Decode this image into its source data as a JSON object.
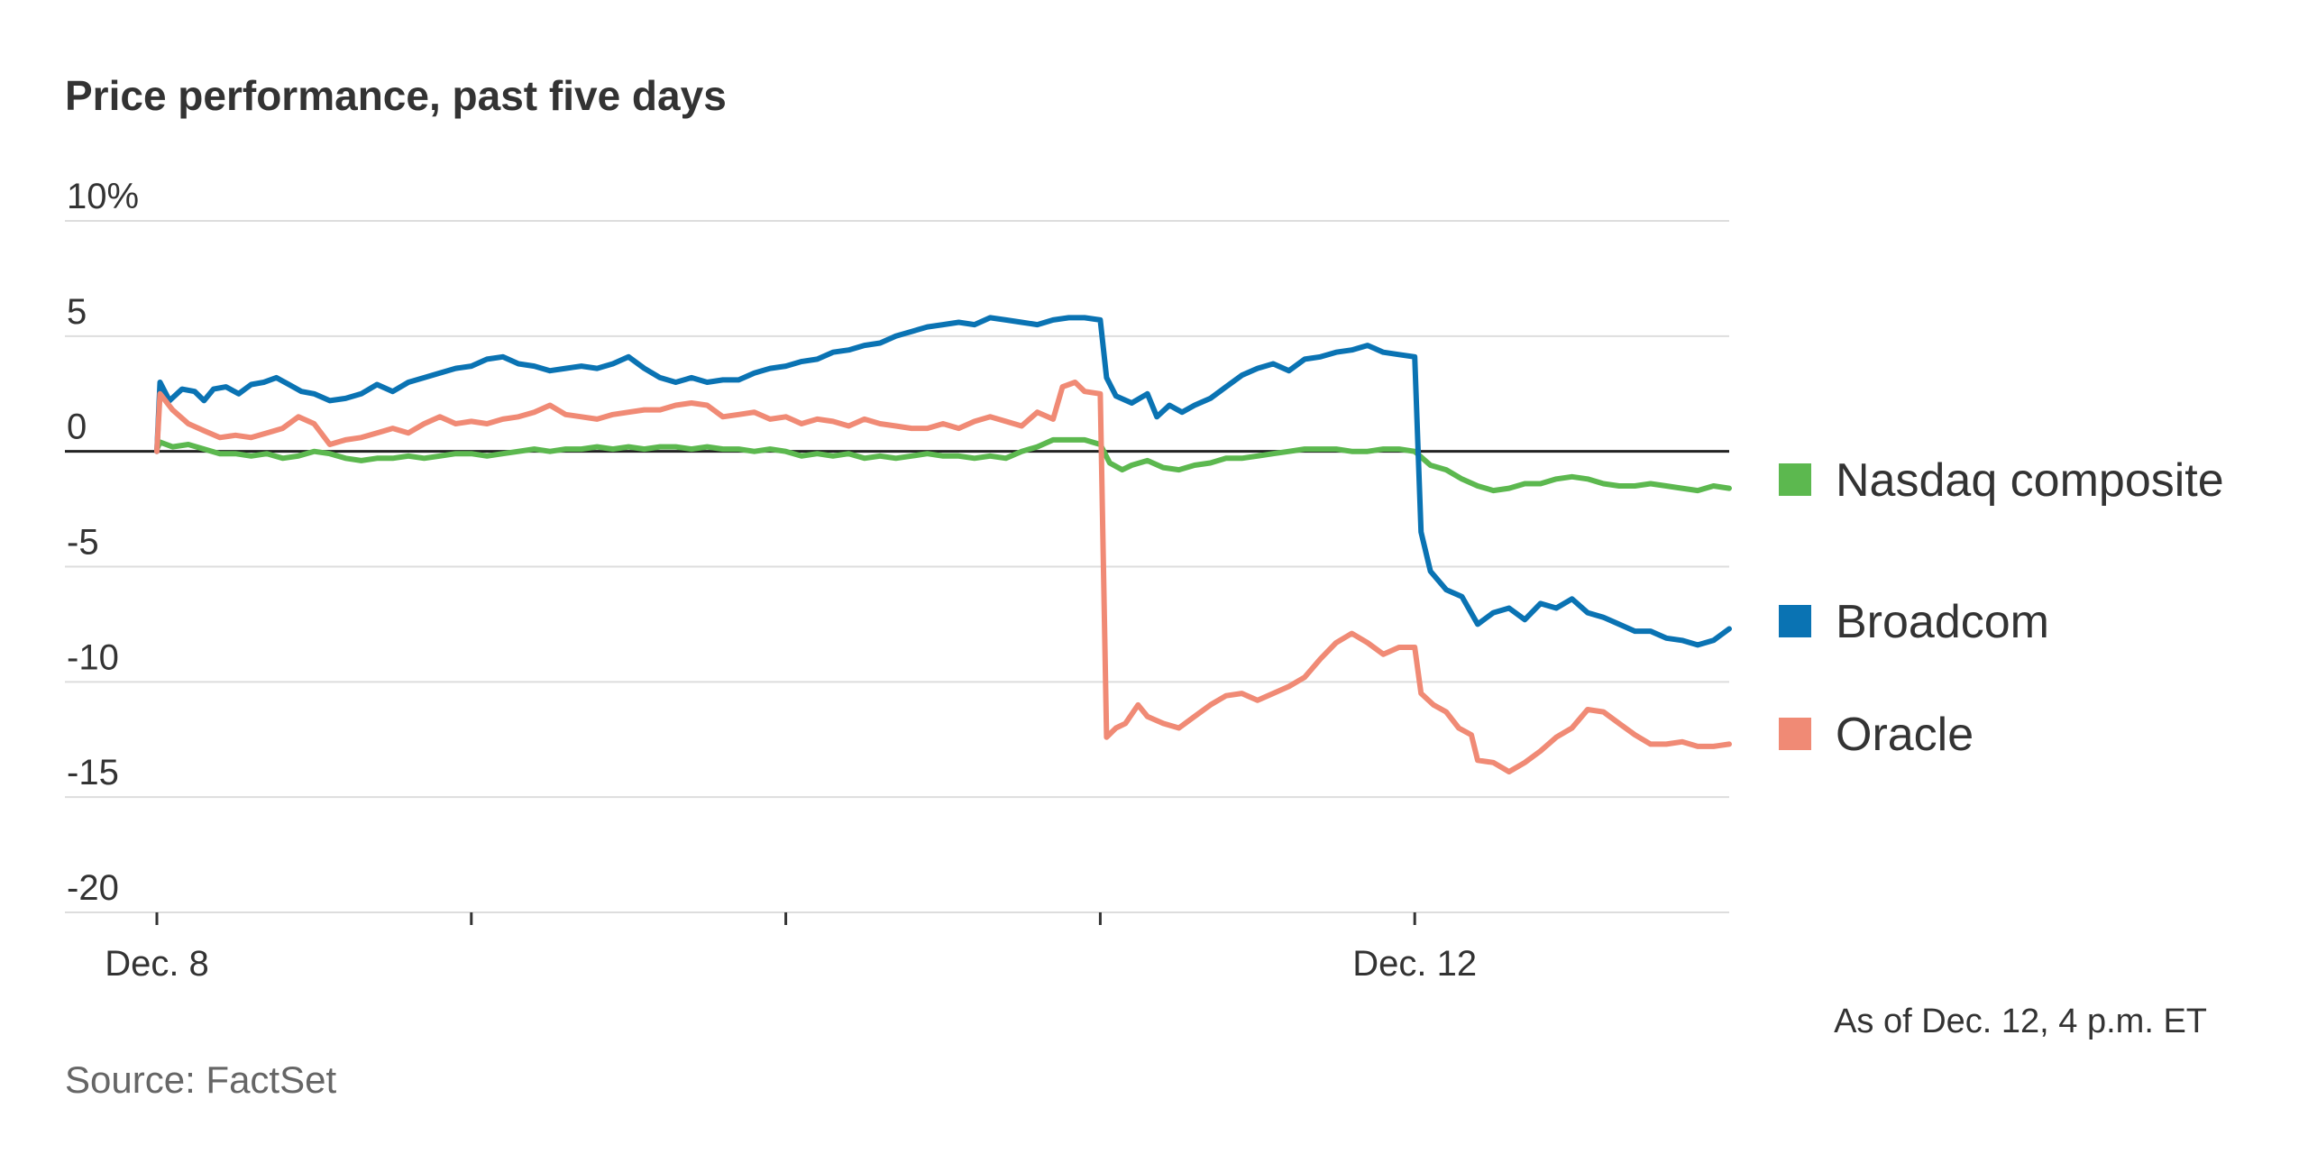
{
  "chart_data": {
    "type": "line",
    "title": "Price performance, past five days",
    "ylabel": "",
    "xlabel": "",
    "ylim": [
      -20,
      10
    ],
    "y_ticks": [
      10,
      5,
      0,
      -5,
      -10,
      -15,
      -20
    ],
    "y_tick_labels": [
      "10%",
      "5",
      "0",
      "-5",
      "-10",
      "-15",
      "-20"
    ],
    "x_range": [
      0,
      5
    ],
    "x_tick_positions": [
      0,
      1,
      2,
      3,
      4
    ],
    "x_tick_labels": [
      {
        "x": 0,
        "label": "Dec. 8"
      },
      {
        "x": 4,
        "label": "Dec. 12"
      }
    ],
    "grid": true,
    "legend_position": "right",
    "note": "As of Dec. 12, 4 p.m. ET",
    "source": "Source: FactSet",
    "series": [
      {
        "name": "Nasdaq composite",
        "color": "#5cb84f",
        "points": [
          [
            0,
            0.1
          ],
          [
            0.01,
            0.4
          ],
          [
            0.05,
            0.2
          ],
          [
            0.1,
            0.3
          ],
          [
            0.15,
            0.1
          ],
          [
            0.2,
            -0.1
          ],
          [
            0.25,
            -0.1
          ],
          [
            0.3,
            -0.2
          ],
          [
            0.35,
            -0.1
          ],
          [
            0.4,
            -0.3
          ],
          [
            0.45,
            -0.2
          ],
          [
            0.5,
            0.0
          ],
          [
            0.55,
            -0.1
          ],
          [
            0.6,
            -0.3
          ],
          [
            0.65,
            -0.4
          ],
          [
            0.7,
            -0.3
          ],
          [
            0.75,
            -0.3
          ],
          [
            0.8,
            -0.2
          ],
          [
            0.85,
            -0.3
          ],
          [
            0.9,
            -0.2
          ],
          [
            0.95,
            -0.1
          ],
          [
            1.0,
            -0.1
          ],
          [
            1.05,
            -0.2
          ],
          [
            1.1,
            -0.1
          ],
          [
            1.15,
            0.0
          ],
          [
            1.2,
            0.1
          ],
          [
            1.25,
            0.0
          ],
          [
            1.3,
            0.1
          ],
          [
            1.35,
            0.1
          ],
          [
            1.4,
            0.2
          ],
          [
            1.45,
            0.1
          ],
          [
            1.5,
            0.2
          ],
          [
            1.55,
            0.1
          ],
          [
            1.6,
            0.2
          ],
          [
            1.65,
            0.2
          ],
          [
            1.7,
            0.1
          ],
          [
            1.75,
            0.2
          ],
          [
            1.8,
            0.1
          ],
          [
            1.85,
            0.1
          ],
          [
            1.9,
            0.0
          ],
          [
            1.95,
            0.1
          ],
          [
            2.0,
            0.0
          ],
          [
            2.05,
            -0.2
          ],
          [
            2.1,
            -0.1
          ],
          [
            2.15,
            -0.2
          ],
          [
            2.2,
            -0.1
          ],
          [
            2.25,
            -0.3
          ],
          [
            2.3,
            -0.2
          ],
          [
            2.35,
            -0.3
          ],
          [
            2.4,
            -0.2
          ],
          [
            2.45,
            -0.1
          ],
          [
            2.5,
            -0.2
          ],
          [
            2.55,
            -0.2
          ],
          [
            2.6,
            -0.3
          ],
          [
            2.65,
            -0.2
          ],
          [
            2.7,
            -0.3
          ],
          [
            2.75,
            0.0
          ],
          [
            2.8,
            0.2
          ],
          [
            2.85,
            0.5
          ],
          [
            2.9,
            0.5
          ],
          [
            2.95,
            0.5
          ],
          [
            3.0,
            0.3
          ],
          [
            3.03,
            -0.5
          ],
          [
            3.07,
            -0.8
          ],
          [
            3.1,
            -0.6
          ],
          [
            3.15,
            -0.4
          ],
          [
            3.2,
            -0.7
          ],
          [
            3.25,
            -0.8
          ],
          [
            3.3,
            -0.6
          ],
          [
            3.35,
            -0.5
          ],
          [
            3.4,
            -0.3
          ],
          [
            3.45,
            -0.3
          ],
          [
            3.5,
            -0.2
          ],
          [
            3.55,
            -0.1
          ],
          [
            3.6,
            0.0
          ],
          [
            3.65,
            0.1
          ],
          [
            3.7,
            0.1
          ],
          [
            3.75,
            0.1
          ],
          [
            3.8,
            0.0
          ],
          [
            3.85,
            0.0
          ],
          [
            3.9,
            0.1
          ],
          [
            3.95,
            0.1
          ],
          [
            4.0,
            0.0
          ],
          [
            4.05,
            -0.6
          ],
          [
            4.1,
            -0.8
          ],
          [
            4.15,
            -1.2
          ],
          [
            4.2,
            -1.5
          ],
          [
            4.25,
            -1.7
          ],
          [
            4.3,
            -1.6
          ],
          [
            4.35,
            -1.4
          ],
          [
            4.4,
            -1.4
          ],
          [
            4.45,
            -1.2
          ],
          [
            4.5,
            -1.1
          ],
          [
            4.55,
            -1.2
          ],
          [
            4.6,
            -1.4
          ],
          [
            4.65,
            -1.5
          ],
          [
            4.7,
            -1.5
          ],
          [
            4.75,
            -1.4
          ],
          [
            4.8,
            -1.5
          ],
          [
            4.85,
            -1.6
          ],
          [
            4.9,
            -1.7
          ],
          [
            4.95,
            -1.5
          ],
          [
            5.0,
            -1.6
          ]
        ]
      },
      {
        "name": "Broadcom",
        "color": "#0a73b3",
        "points": [
          [
            0,
            0.0
          ],
          [
            0.01,
            3.0
          ],
          [
            0.04,
            2.2
          ],
          [
            0.08,
            2.7
          ],
          [
            0.12,
            2.6
          ],
          [
            0.15,
            2.2
          ],
          [
            0.18,
            2.7
          ],
          [
            0.22,
            2.8
          ],
          [
            0.26,
            2.5
          ],
          [
            0.3,
            2.9
          ],
          [
            0.34,
            3.0
          ],
          [
            0.38,
            3.2
          ],
          [
            0.42,
            2.9
          ],
          [
            0.46,
            2.6
          ],
          [
            0.5,
            2.5
          ],
          [
            0.55,
            2.2
          ],
          [
            0.6,
            2.3
          ],
          [
            0.65,
            2.5
          ],
          [
            0.7,
            2.9
          ],
          [
            0.75,
            2.6
          ],
          [
            0.8,
            3.0
          ],
          [
            0.85,
            3.2
          ],
          [
            0.9,
            3.4
          ],
          [
            0.95,
            3.6
          ],
          [
            1.0,
            3.7
          ],
          [
            1.05,
            4.0
          ],
          [
            1.1,
            4.1
          ],
          [
            1.15,
            3.8
          ],
          [
            1.2,
            3.7
          ],
          [
            1.25,
            3.5
          ],
          [
            1.3,
            3.6
          ],
          [
            1.35,
            3.7
          ],
          [
            1.4,
            3.6
          ],
          [
            1.45,
            3.8
          ],
          [
            1.5,
            4.1
          ],
          [
            1.55,
            3.6
          ],
          [
            1.6,
            3.2
          ],
          [
            1.65,
            3.0
          ],
          [
            1.7,
            3.2
          ],
          [
            1.75,
            3.0
          ],
          [
            1.8,
            3.1
          ],
          [
            1.85,
            3.1
          ],
          [
            1.9,
            3.4
          ],
          [
            1.95,
            3.6
          ],
          [
            2.0,
            3.7
          ],
          [
            2.05,
            3.9
          ],
          [
            2.1,
            4.0
          ],
          [
            2.15,
            4.3
          ],
          [
            2.2,
            4.4
          ],
          [
            2.25,
            4.6
          ],
          [
            2.3,
            4.7
          ],
          [
            2.35,
            5.0
          ],
          [
            2.4,
            5.2
          ],
          [
            2.45,
            5.4
          ],
          [
            2.5,
            5.5
          ],
          [
            2.55,
            5.6
          ],
          [
            2.6,
            5.5
          ],
          [
            2.65,
            5.8
          ],
          [
            2.7,
            5.7
          ],
          [
            2.75,
            5.6
          ],
          [
            2.8,
            5.5
          ],
          [
            2.85,
            5.7
          ],
          [
            2.9,
            5.8
          ],
          [
            2.95,
            5.8
          ],
          [
            3.0,
            5.7
          ],
          [
            3.02,
            3.2
          ],
          [
            3.05,
            2.4
          ],
          [
            3.1,
            2.1
          ],
          [
            3.15,
            2.5
          ],
          [
            3.18,
            1.5
          ],
          [
            3.22,
            2.0
          ],
          [
            3.26,
            1.7
          ],
          [
            3.3,
            2.0
          ],
          [
            3.35,
            2.3
          ],
          [
            3.4,
            2.8
          ],
          [
            3.45,
            3.3
          ],
          [
            3.5,
            3.6
          ],
          [
            3.55,
            3.8
          ],
          [
            3.6,
            3.5
          ],
          [
            3.65,
            4.0
          ],
          [
            3.7,
            4.1
          ],
          [
            3.75,
            4.3
          ],
          [
            3.8,
            4.4
          ],
          [
            3.85,
            4.6
          ],
          [
            3.9,
            4.3
          ],
          [
            3.95,
            4.2
          ],
          [
            4.0,
            4.1
          ],
          [
            4.02,
            -3.5
          ],
          [
            4.05,
            -5.2
          ],
          [
            4.1,
            -6.0
          ],
          [
            4.15,
            -6.3
          ],
          [
            4.2,
            -7.5
          ],
          [
            4.25,
            -7.0
          ],
          [
            4.3,
            -6.8
          ],
          [
            4.35,
            -7.3
          ],
          [
            4.4,
            -6.6
          ],
          [
            4.45,
            -6.8
          ],
          [
            4.5,
            -6.4
          ],
          [
            4.55,
            -7.0
          ],
          [
            4.6,
            -7.2
          ],
          [
            4.65,
            -7.5
          ],
          [
            4.7,
            -7.8
          ],
          [
            4.75,
            -7.8
          ],
          [
            4.8,
            -8.1
          ],
          [
            4.85,
            -8.2
          ],
          [
            4.9,
            -8.4
          ],
          [
            4.95,
            -8.2
          ],
          [
            5.0,
            -7.7
          ]
        ]
      },
      {
        "name": "Oracle",
        "color": "#f08a75",
        "points": [
          [
            0,
            0.0
          ],
          [
            0.01,
            2.5
          ],
          [
            0.05,
            1.8
          ],
          [
            0.1,
            1.2
          ],
          [
            0.15,
            0.9
          ],
          [
            0.2,
            0.6
          ],
          [
            0.25,
            0.7
          ],
          [
            0.3,
            0.6
          ],
          [
            0.35,
            0.8
          ],
          [
            0.4,
            1.0
          ],
          [
            0.45,
            1.5
          ],
          [
            0.5,
            1.2
          ],
          [
            0.55,
            0.3
          ],
          [
            0.6,
            0.5
          ],
          [
            0.65,
            0.6
          ],
          [
            0.7,
            0.8
          ],
          [
            0.75,
            1.0
          ],
          [
            0.8,
            0.8
          ],
          [
            0.85,
            1.2
          ],
          [
            0.9,
            1.5
          ],
          [
            0.95,
            1.2
          ],
          [
            1.0,
            1.3
          ],
          [
            1.05,
            1.2
          ],
          [
            1.1,
            1.4
          ],
          [
            1.15,
            1.5
          ],
          [
            1.2,
            1.7
          ],
          [
            1.25,
            2.0
          ],
          [
            1.3,
            1.6
          ],
          [
            1.35,
            1.5
          ],
          [
            1.4,
            1.4
          ],
          [
            1.45,
            1.6
          ],
          [
            1.5,
            1.7
          ],
          [
            1.55,
            1.8
          ],
          [
            1.6,
            1.8
          ],
          [
            1.65,
            2.0
          ],
          [
            1.7,
            2.1
          ],
          [
            1.75,
            2.0
          ],
          [
            1.8,
            1.5
          ],
          [
            1.85,
            1.6
          ],
          [
            1.9,
            1.7
          ],
          [
            1.95,
            1.4
          ],
          [
            2.0,
            1.5
          ],
          [
            2.05,
            1.2
          ],
          [
            2.1,
            1.4
          ],
          [
            2.15,
            1.3
          ],
          [
            2.2,
            1.1
          ],
          [
            2.25,
            1.4
          ],
          [
            2.3,
            1.2
          ],
          [
            2.35,
            1.1
          ],
          [
            2.4,
            1.0
          ],
          [
            2.45,
            1.0
          ],
          [
            2.5,
            1.2
          ],
          [
            2.55,
            1.0
          ],
          [
            2.6,
            1.3
          ],
          [
            2.65,
            1.5
          ],
          [
            2.7,
            1.3
          ],
          [
            2.75,
            1.1
          ],
          [
            2.8,
            1.7
          ],
          [
            2.85,
            1.4
          ],
          [
            2.88,
            2.8
          ],
          [
            2.92,
            3.0
          ],
          [
            2.95,
            2.6
          ],
          [
            3.0,
            2.5
          ],
          [
            3.02,
            -12.4
          ],
          [
            3.05,
            -12.0
          ],
          [
            3.08,
            -11.8
          ],
          [
            3.12,
            -11.0
          ],
          [
            3.15,
            -11.5
          ],
          [
            3.2,
            -11.8
          ],
          [
            3.25,
            -12.0
          ],
          [
            3.3,
            -11.5
          ],
          [
            3.35,
            -11.0
          ],
          [
            3.4,
            -10.6
          ],
          [
            3.45,
            -10.5
          ],
          [
            3.5,
            -10.8
          ],
          [
            3.55,
            -10.5
          ],
          [
            3.6,
            -10.2
          ],
          [
            3.65,
            -9.8
          ],
          [
            3.7,
            -9.0
          ],
          [
            3.75,
            -8.3
          ],
          [
            3.8,
            -7.9
          ],
          [
            3.85,
            -8.3
          ],
          [
            3.9,
            -8.8
          ],
          [
            3.95,
            -8.5
          ],
          [
            4.0,
            -8.5
          ],
          [
            4.02,
            -10.5
          ],
          [
            4.06,
            -11.0
          ],
          [
            4.1,
            -11.3
          ],
          [
            4.14,
            -12.0
          ],
          [
            4.18,
            -12.3
          ],
          [
            4.2,
            -13.4
          ],
          [
            4.25,
            -13.5
          ],
          [
            4.3,
            -13.9
          ],
          [
            4.35,
            -13.5
          ],
          [
            4.4,
            -13.0
          ],
          [
            4.45,
            -12.4
          ],
          [
            4.5,
            -12.0
          ],
          [
            4.55,
            -11.2
          ],
          [
            4.6,
            -11.3
          ],
          [
            4.65,
            -11.8
          ],
          [
            4.7,
            -12.3
          ],
          [
            4.75,
            -12.7
          ],
          [
            4.8,
            -12.7
          ],
          [
            4.85,
            -12.6
          ],
          [
            4.9,
            -12.8
          ],
          [
            4.95,
            -12.8
          ],
          [
            5.0,
            -12.7
          ]
        ]
      }
    ]
  }
}
